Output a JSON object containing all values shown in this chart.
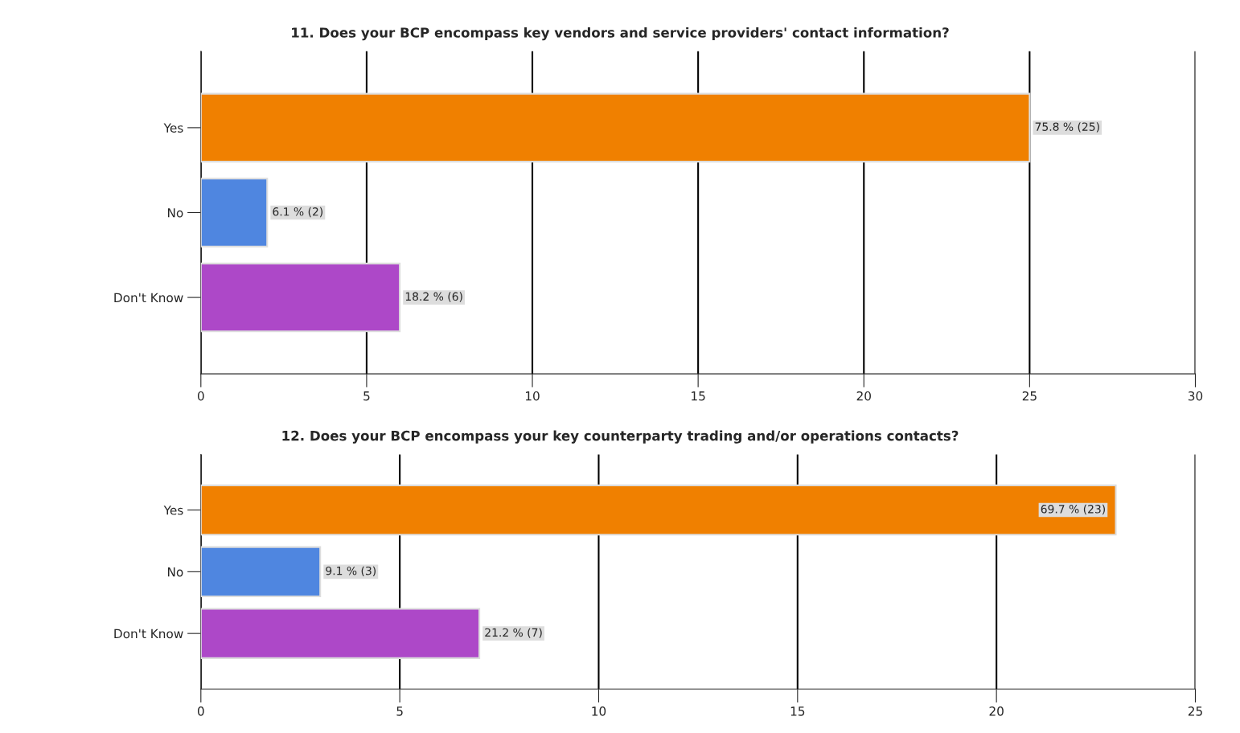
{
  "chart_data": [
    {
      "type": "bar",
      "orientation": "horizontal",
      "title": "11. Does your BCP encompass key vendors and service providers' contact information?",
      "categories": [
        "Yes",
        "No",
        "Don't Know"
      ],
      "values": [
        25,
        2,
        6
      ],
      "colors": [
        "#f08000",
        "#4f86e0",
        "#ad48c8"
      ],
      "value_labels": [
        "75.8 % (25)",
        "6.1 % (2)",
        "18.2 % (6)"
      ],
      "xlim": [
        0,
        30
      ],
      "xticks": [
        0,
        5,
        10,
        15,
        20,
        25,
        30
      ],
      "grid": "x"
    },
    {
      "type": "bar",
      "orientation": "horizontal",
      "title": "12. Does your BCP encompass your key counterparty trading and/or operations contacts?",
      "categories": [
        "Yes",
        "No",
        "Don't Know"
      ],
      "values": [
        23,
        3,
        7
      ],
      "colors": [
        "#f08000",
        "#4f86e0",
        "#ad48c8"
      ],
      "value_labels": [
        "69.7 % (23)",
        "9.1 % (3)",
        "21.2 % (7)"
      ],
      "xlim": [
        0,
        25
      ],
      "xticks": [
        0,
        5,
        10,
        15,
        20,
        25
      ],
      "grid": "x"
    }
  ]
}
